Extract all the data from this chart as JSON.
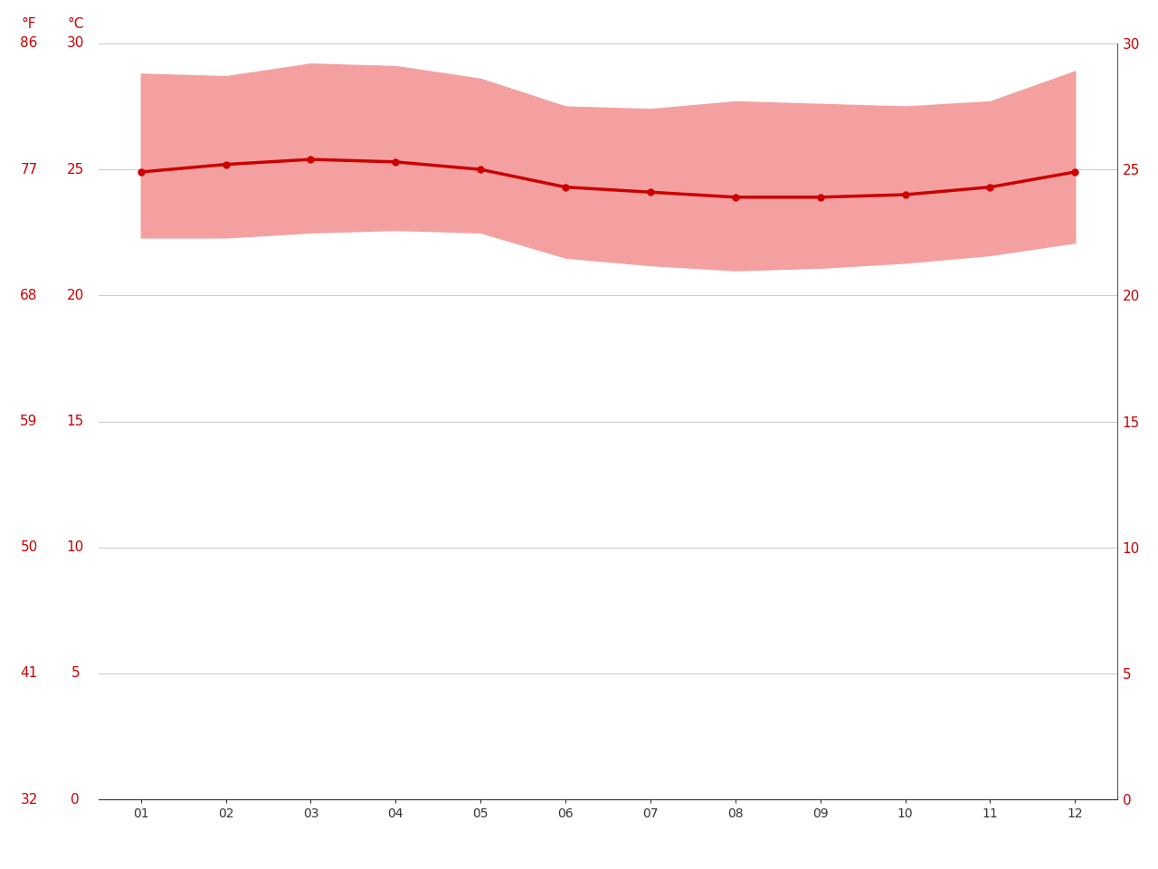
{
  "months": [
    1,
    2,
    3,
    4,
    5,
    6,
    7,
    8,
    9,
    10,
    11,
    12
  ],
  "month_labels": [
    "01",
    "02",
    "03",
    "04",
    "05",
    "06",
    "07",
    "08",
    "09",
    "10",
    "11",
    "12"
  ],
  "avg_temp_c": [
    24.9,
    25.2,
    25.4,
    25.3,
    25.0,
    24.3,
    24.1,
    23.9,
    23.9,
    24.0,
    24.3,
    24.9
  ],
  "max_temp_c": [
    28.8,
    28.7,
    29.2,
    29.1,
    28.6,
    27.5,
    27.4,
    27.7,
    27.6,
    27.5,
    27.7,
    28.9
  ],
  "min_temp_c": [
    22.3,
    22.3,
    22.5,
    22.6,
    22.5,
    21.5,
    21.2,
    21.0,
    21.1,
    21.3,
    21.6,
    22.1
  ],
  "line_color": "#cc0000",
  "band_color": "#f4a0a0",
  "background_color": "#ffffff",
  "grid_color": "#cccccc",
  "tick_color": "#cc0000",
  "yticks_c": [
    0,
    5,
    10,
    15,
    20,
    25,
    30
  ],
  "yticks_f": [
    32,
    41,
    50,
    59,
    68,
    77,
    86
  ],
  "ylim_c": [
    0,
    30
  ],
  "ylim_f": [
    32,
    86
  ],
  "ylabel_f": "°F",
  "ylabel_c": "°C",
  "marker_size": 5,
  "line_width": 2.5,
  "right_spine_color": "#555555"
}
